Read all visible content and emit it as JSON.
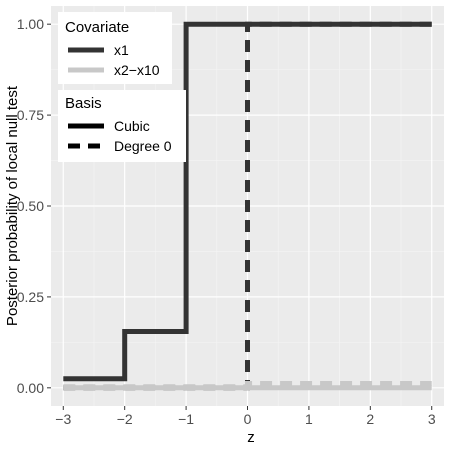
{
  "chart_data": {
    "type": "line",
    "title": "",
    "xlabel": "z",
    "ylabel": "Posterior probability of local null test",
    "xlim": [
      -3.2,
      3.2
    ],
    "ylim": [
      -0.05,
      1.05
    ],
    "x_ticks": [
      -3,
      -2,
      -1,
      0,
      1,
      2,
      3
    ],
    "x_tick_labels": [
      "−3",
      "−2",
      "−1",
      "0",
      "1",
      "2",
      "3"
    ],
    "y_ticks": [
      0,
      0.25,
      0.5,
      0.75,
      1
    ],
    "y_tick_labels": [
      "0.00",
      "0.25",
      "0.50",
      "0.75",
      "1.00"
    ],
    "grid": true,
    "background": "#ebebeb",
    "series": [
      {
        "name": "x1 Cubic",
        "covariate": "x1",
        "basis": "Cubic",
        "color": "#333333",
        "dash": "solid",
        "points": [
          [
            -3,
            0.025
          ],
          [
            -2,
            0.025
          ],
          [
            -2,
            0.155
          ],
          [
            -1,
            0.155
          ],
          [
            -1,
            1.0
          ],
          [
            3,
            1.0
          ]
        ]
      },
      {
        "name": "x1 Degree 0",
        "covariate": "x1",
        "basis": "Degree 0",
        "color": "#333333",
        "dash": "dashed",
        "points": [
          [
            -3,
            0.0
          ],
          [
            0,
            0.0
          ],
          [
            0,
            1.0
          ],
          [
            3,
            1.0
          ]
        ]
      },
      {
        "name": "x2-x10 Cubic",
        "covariate": "x2−x10",
        "basis": "Cubic",
        "color": "#c8c8c8",
        "dash": "solid",
        "points": [
          [
            -3,
            0.0
          ],
          [
            3,
            0.0
          ]
        ]
      },
      {
        "name": "x2-x10 Degree 0",
        "covariate": "x2−x10",
        "basis": "Degree 0",
        "color": "#c8c8c8",
        "dash": "dashed",
        "points": [
          [
            -3,
            0.003
          ],
          [
            0,
            0.003
          ],
          [
            0,
            0.012
          ],
          [
            3,
            0.012
          ]
        ]
      }
    ],
    "legend": {
      "placement": "top-left",
      "covariate_title": "Covariate",
      "covariate_items": [
        {
          "label": "x1",
          "color": "#333333"
        },
        {
          "label": "x2−x10",
          "color": "#c8c8c8"
        }
      ],
      "basis_title": "Basis",
      "basis_items": [
        {
          "label": "Cubic",
          "dash": "solid"
        },
        {
          "label": "Degree 0",
          "dash": "dashed"
        }
      ]
    }
  }
}
